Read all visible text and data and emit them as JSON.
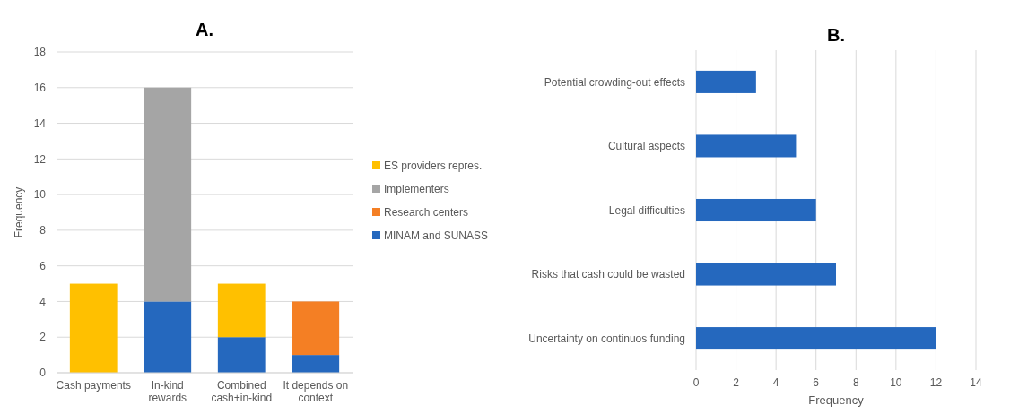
{
  "chart_data": [
    {
      "type": "bar",
      "title": "A.",
      "ylabel": "Frequency",
      "categories": [
        "Cash payments",
        "In-kind rewards",
        "Combined cash+in-kind",
        "It depends on context"
      ],
      "stacked": true,
      "ylim": [
        0,
        18
      ],
      "yticks": [
        0,
        2,
        4,
        6,
        8,
        10,
        12,
        14,
        16,
        18
      ],
      "grid": "y",
      "legend": "right",
      "series": [
        {
          "name": "MINAM and SUNASS",
          "color": "#2568be",
          "values": [
            0,
            4,
            2,
            1
          ]
        },
        {
          "name": "Research centers",
          "color": "#f47f24",
          "values": [
            0,
            0,
            0,
            3
          ]
        },
        {
          "name": "Implementers",
          "color": "#a5a5a5",
          "values": [
            0,
            12,
            0,
            0
          ]
        },
        {
          "name": "ES providers repres.",
          "color": "#ffc000",
          "values": [
            5,
            0,
            3,
            0
          ]
        }
      ]
    },
    {
      "type": "bar",
      "title": "B.",
      "xlabel": "Frequency",
      "orientation": "horizontal",
      "categories": [
        "Potential crowding-out effects",
        "Cultural aspects",
        "Legal difficulties",
        "Risks that cash could be wasted",
        "Uncertainty on continuos funding"
      ],
      "xlim": [
        0,
        14
      ],
      "xticks": [
        0,
        2,
        4,
        6,
        8,
        10,
        12,
        14
      ],
      "grid": "x",
      "series": [
        {
          "color": "#2568be",
          "values": [
            3,
            5,
            6,
            7,
            12
          ]
        }
      ]
    }
  ]
}
